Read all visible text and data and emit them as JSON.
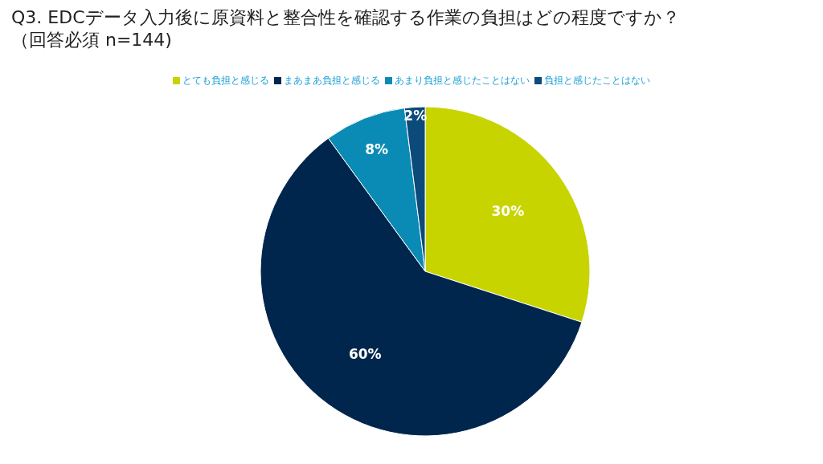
{
  "chart_data": {
    "type": "pie",
    "title": "Q3. EDCデータ入力後に原資料と整合性を確認する作業の負担はどの程度ですか？",
    "subtitle": "（回答必須 n=144)",
    "categories": [
      "とても負担と感じる",
      "まあまあ負担と感じる",
      "あまり負担と感じたことはない",
      "負担と感じたことはない"
    ],
    "values": [
      30,
      60,
      8,
      2
    ],
    "value_labels": [
      "30%",
      "60%",
      "8%",
      "2%"
    ],
    "colors": [
      "#c8d400",
      "#00264d",
      "#0a8bb5",
      "#0b4a7a"
    ],
    "legend": "top"
  }
}
